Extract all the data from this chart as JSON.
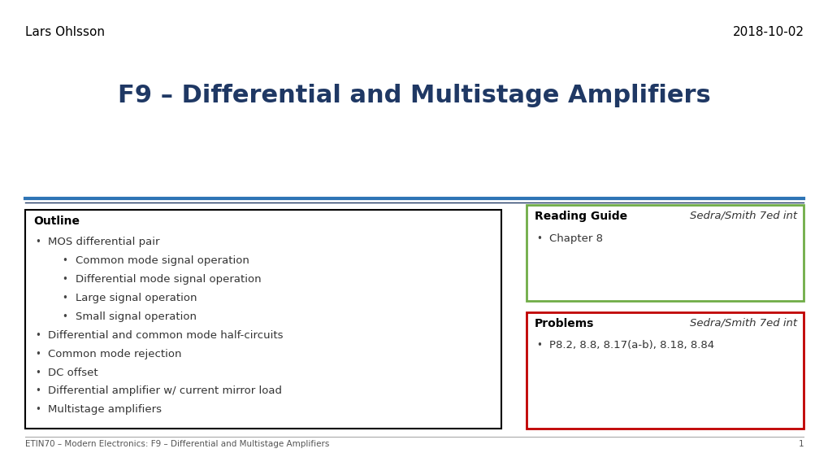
{
  "background_color": "#ffffff",
  "title": "F9 – Differential and Multistage Amplifiers",
  "title_color": "#1f3864",
  "title_fontsize": 22,
  "header_left": "Lars Ohlsson",
  "header_right": "2018-10-02",
  "header_fontsize": 11,
  "separator_color_top": "#2e74b5",
  "separator_color_bottom": "#1f3864",
  "footer_text": "ETIN70 – Modern Electronics: F9 – Differential and Multistage Amplifiers",
  "footer_page": "1",
  "footer_fontsize": 7.5,
  "outline_box": {
    "title": "Outline",
    "border_color": "#000000",
    "title_fontsize": 10,
    "content_fontsize": 9.5,
    "items": [
      {
        "text": "MOS differential pair",
        "level": 1
      },
      {
        "text": "Common mode signal operation",
        "level": 2
      },
      {
        "text": "Differential mode signal operation",
        "level": 2
      },
      {
        "text": "Large signal operation",
        "level": 2
      },
      {
        "text": "Small signal operation",
        "level": 2
      },
      {
        "text": "Differential and common mode half-circuits",
        "level": 1
      },
      {
        "text": "Common mode rejection",
        "level": 1
      },
      {
        "text": "DC offset",
        "level": 1
      },
      {
        "text": "Differential amplifier w/ current mirror load",
        "level": 1
      },
      {
        "text": "Multistage amplifiers",
        "level": 1
      }
    ]
  },
  "reading_box": {
    "title": "Reading Guide",
    "subtitle": "Sedra/Smith 7ed int",
    "border_color": "#70ad47",
    "title_fontsize": 10,
    "content_fontsize": 9.5,
    "items": [
      {
        "text": "Chapter 8",
        "level": 1
      }
    ]
  },
  "problems_box": {
    "title": "Problems",
    "subtitle": "Sedra/Smith 7ed int",
    "border_color": "#c00000",
    "title_fontsize": 10,
    "content_fontsize": 9.5,
    "items": [
      {
        "text": "P8.2, 8.8, 8.17(a-b), 8.18, 8.84",
        "level": 1
      }
    ]
  }
}
